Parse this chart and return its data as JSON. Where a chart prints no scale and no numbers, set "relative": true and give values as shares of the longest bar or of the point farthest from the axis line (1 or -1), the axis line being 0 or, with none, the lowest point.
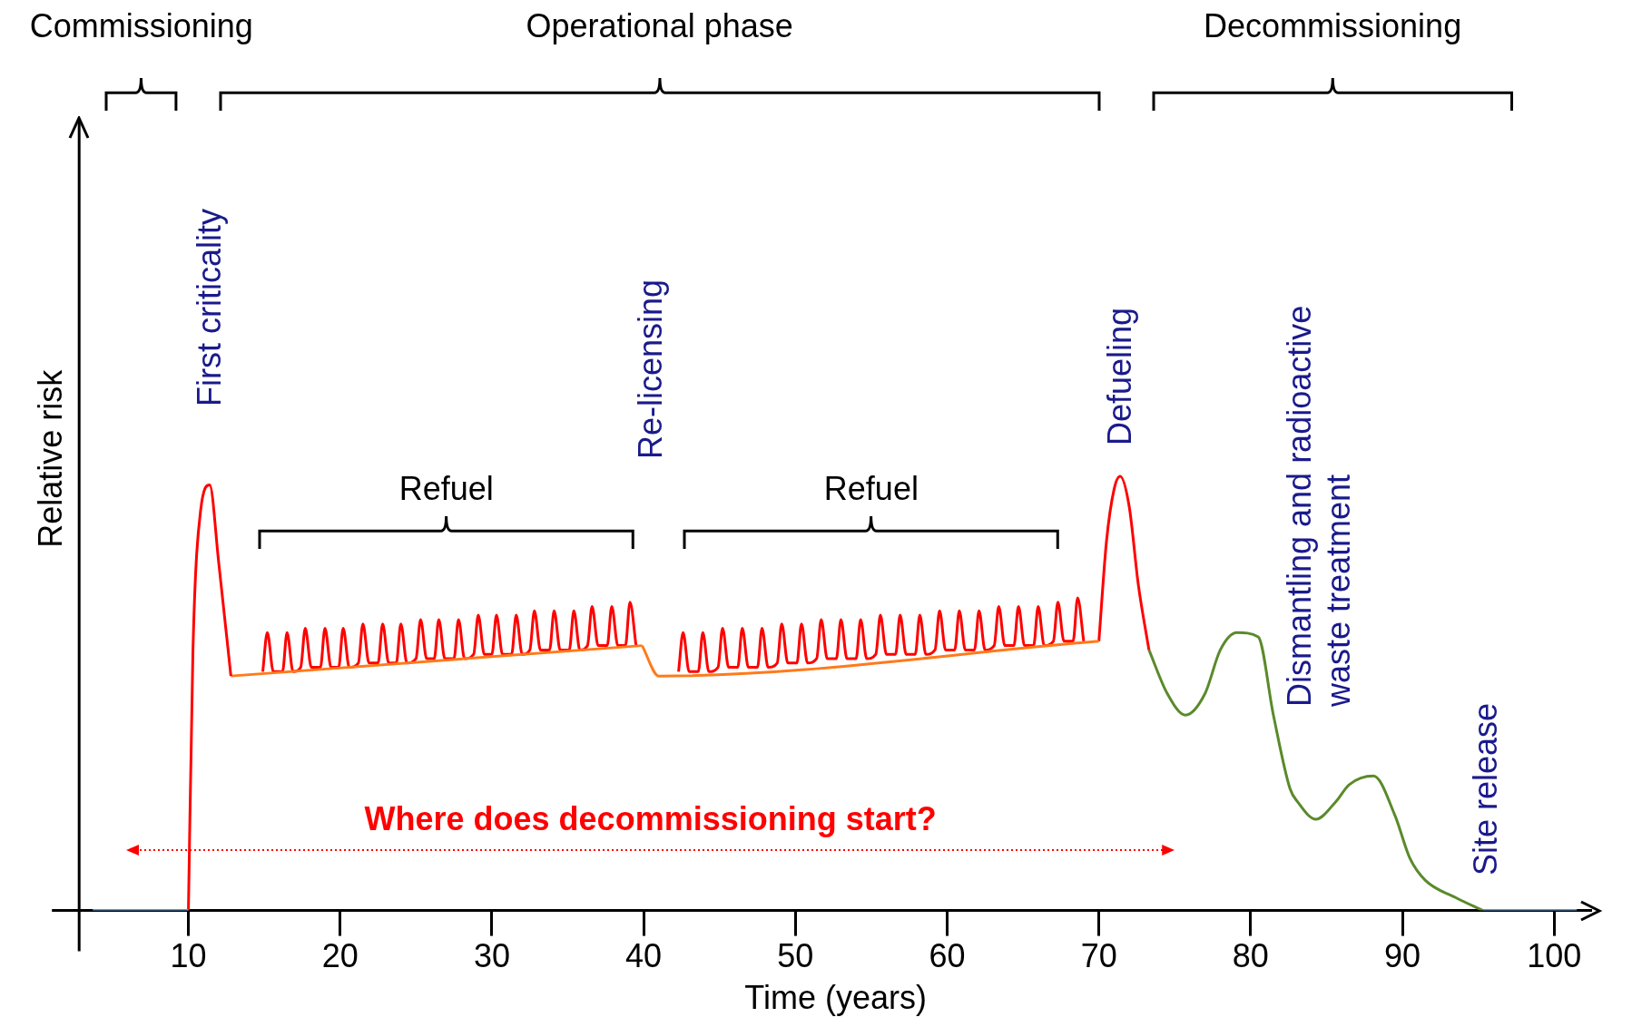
{
  "chart_data": {
    "type": "line",
    "relative": true,
    "xlabel": "Time (years)",
    "ylabel": "Relative risk",
    "xlim": [
      2.8,
      102.5
    ],
    "xticks": [
      10,
      20,
      30,
      40,
      50,
      60,
      70,
      80,
      90,
      100
    ],
    "grid": false,
    "legend": false,
    "marker": "none",
    "series": [
      {
        "color": "#5b9bd5",
        "x": [
          3.7,
          10
        ],
        "values": [
          0,
          0
        ]
      },
      {
        "color": "#ff0000",
        "x": [
          10,
          10.3,
          10.8,
          11.4,
          12,
          12.8
        ],
        "values": [
          0,
          0.6,
          0.92,
          0.98,
          0.8,
          0.54
        ]
      },
      {
        "color": "#ff7a1a",
        "x": [
          12.8,
          39.9
        ],
        "values": [
          0.54,
          0.61
        ]
      },
      {
        "color": "#ff0000",
        "x": [
          14.9,
          15.2,
          15.6,
          16.2,
          16.5,
          16.9,
          17.4,
          17.7,
          18.1,
          18.7,
          19.0,
          19.4,
          19.9,
          20.2,
          20.6,
          21.2,
          21.5,
          21.9,
          22.5,
          22.8,
          23.2,
          23.7,
          24.0,
          24.4,
          25.0,
          25.3,
          25.7,
          26.2,
          26.5,
          26.9,
          27.5,
          27.8,
          28.2,
          28.8,
          29.1,
          29.5,
          30.0,
          30.3,
          30.7,
          31.3,
          31.6,
          32.0,
          32.5,
          32.8,
          33.2,
          33.8,
          34.1,
          34.5,
          35.1,
          35.4,
          35.8,
          36.3,
          36.6,
          37.0,
          37.6,
          37.9,
          38.3,
          38.8,
          39.1,
          39.5
        ],
        "values": [
          0.55,
          0.64,
          0.55,
          0.55,
          0.64,
          0.55,
          0.56,
          0.65,
          0.56,
          0.56,
          0.65,
          0.56,
          0.56,
          0.65,
          0.56,
          0.57,
          0.66,
          0.57,
          0.57,
          0.66,
          0.57,
          0.57,
          0.66,
          0.57,
          0.58,
          0.67,
          0.58,
          0.58,
          0.67,
          0.58,
          0.58,
          0.67,
          0.58,
          0.59,
          0.68,
          0.59,
          0.59,
          0.68,
          0.59,
          0.59,
          0.68,
          0.59,
          0.6,
          0.69,
          0.6,
          0.6,
          0.69,
          0.6,
          0.6,
          0.69,
          0.6,
          0.61,
          0.7,
          0.61,
          0.61,
          0.7,
          0.61,
          0.61,
          0.71,
          0.61
        ]
      },
      {
        "color": "#ff7a1a",
        "x": [
          39.9,
          41,
          70
        ],
        "values": [
          0.61,
          0.54,
          0.62
        ]
      },
      {
        "color": "#ff0000",
        "x": [
          42.3,
          42.6,
          43.0,
          43.6,
          43.9,
          44.3,
          44.9,
          45.2,
          45.6,
          46.2,
          46.5,
          46.9,
          47.5,
          47.8,
          48.2,
          48.8,
          49.1,
          49.5,
          50.1,
          50.4,
          50.8,
          51.4,
          51.7,
          52.1,
          52.7,
          53.0,
          53.4,
          54.0,
          54.3,
          54.7,
          55.3,
          55.6,
          56.0,
          56.6,
          56.9,
          57.3,
          57.9,
          58.2,
          58.6,
          59.2,
          59.5,
          59.9,
          60.5,
          60.8,
          61.2,
          61.8,
          62.1,
          62.5,
          63.1,
          63.4,
          63.8,
          64.4,
          64.7,
          65.1,
          65.7,
          66.0,
          66.4,
          67.0,
          67.3,
          67.7,
          68.3,
          68.6,
          69.0
        ],
        "values": [
          0.55,
          0.64,
          0.55,
          0.55,
          0.64,
          0.55,
          0.56,
          0.65,
          0.56,
          0.56,
          0.65,
          0.56,
          0.56,
          0.65,
          0.56,
          0.57,
          0.66,
          0.57,
          0.57,
          0.66,
          0.57,
          0.58,
          0.67,
          0.58,
          0.58,
          0.67,
          0.58,
          0.58,
          0.67,
          0.58,
          0.59,
          0.68,
          0.59,
          0.59,
          0.68,
          0.59,
          0.59,
          0.68,
          0.59,
          0.6,
          0.69,
          0.6,
          0.6,
          0.69,
          0.6,
          0.6,
          0.69,
          0.6,
          0.61,
          0.7,
          0.61,
          0.61,
          0.7,
          0.61,
          0.61,
          0.7,
          0.61,
          0.62,
          0.71,
          0.62,
          0.62,
          0.72,
          0.62
        ]
      },
      {
        "color": "#ff0000",
        "x": [
          70,
          70.5,
          71,
          71.4,
          72,
          72.6,
          73.3
        ],
        "values": [
          0.62,
          0.85,
          0.97,
          1,
          0.93,
          0.75,
          0.6
        ]
      },
      {
        "color": "#5a8a2a",
        "x": [
          73.3,
          74.5,
          75.7,
          77,
          78,
          79.1,
          80.5,
          81.5,
          82.6,
          83.1,
          84.3,
          85.6,
          86.5,
          88.1,
          89.5,
          90.5,
          91.5,
          93.5,
          95.3
        ],
        "values": [
          0.6,
          0.5,
          0.45,
          0.5,
          0.6,
          0.64,
          0.63,
          0.45,
          0.28,
          0.25,
          0.21,
          0.25,
          0.29,
          0.31,
          0.22,
          0.12,
          0.07,
          0.03,
          0
        ]
      },
      {
        "color": "#5b9bd5",
        "x": [
          95.3,
          101.5
        ],
        "values": [
          0,
          0
        ]
      }
    ],
    "annotations": [
      "Commissioning",
      "Operational phase",
      "Decommissioning",
      "First criticality",
      "Re-licensing",
      "Defueling",
      "Dismantling and radioactive waste treatment",
      "Site release",
      "Refuel",
      "Refuel",
      "Where does decommissioning start?"
    ]
  }
}
